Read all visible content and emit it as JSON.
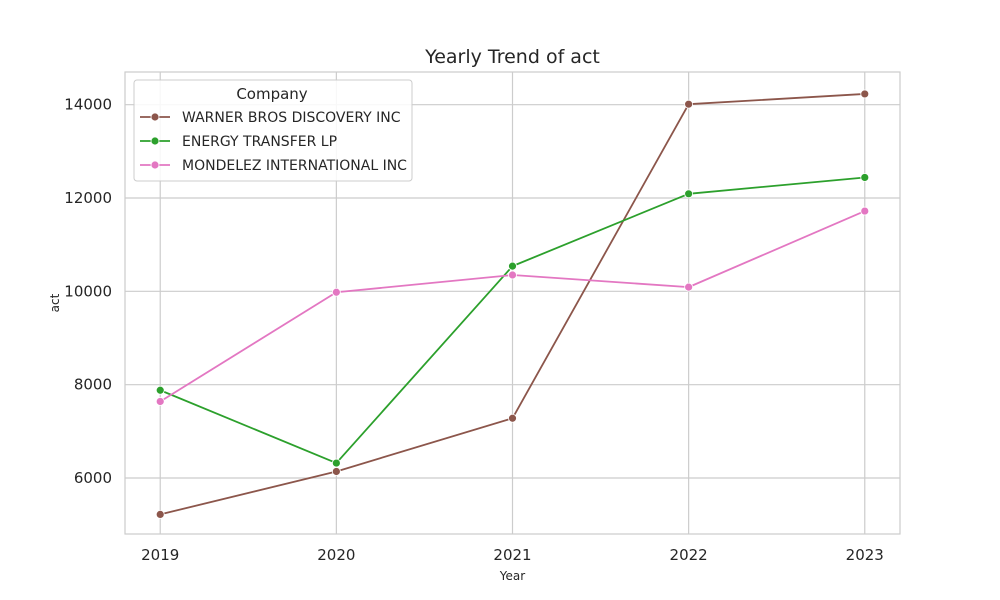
{
  "chart_data": {
    "type": "line",
    "title": "Yearly Trend of act",
    "xlabel": "Year",
    "ylabel": "act",
    "x": [
      2019,
      2020,
      2021,
      2022,
      2023
    ],
    "xlim": [
      2018.8,
      2023.2
    ],
    "ylim": [
      4800,
      14700
    ],
    "y_ticks": [
      6000,
      8000,
      10000,
      12000,
      14000
    ],
    "grid": true,
    "legend": {
      "title": "Company",
      "placement": "top-left"
    },
    "series": [
      {
        "name": "WARNER BROS DISCOVERY INC",
        "color": "#8c564b",
        "values": [
          5220,
          6140,
          7280,
          14010,
          14230
        ]
      },
      {
        "name": "ENERGY TRANSFER LP",
        "color": "#2ca02c",
        "values": [
          7880,
          6320,
          10540,
          12090,
          12440
        ]
      },
      {
        "name": "MONDELEZ INTERNATIONAL INC",
        "color": "#e377c2",
        "values": [
          7640,
          9980,
          10350,
          10090,
          11720
        ]
      }
    ]
  }
}
